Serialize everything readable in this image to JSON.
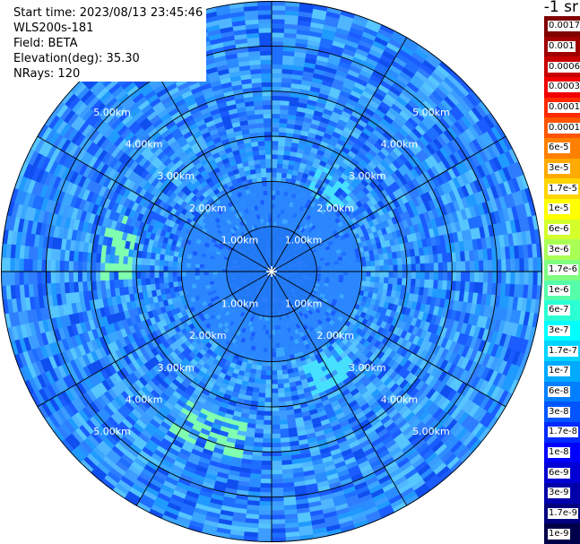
{
  "header": {
    "start_time": "Start time: 2023/08/13 23:45:46",
    "instrument": "WLS200s-181",
    "field": "Field: BETA",
    "elevation": "Elevation(deg): 35.30",
    "nrays": "NRays: 120",
    "units": "-1 sr"
  },
  "colorbar": {
    "labels": [
      "0.0017",
      "0.001",
      "0.0006",
      "0.0003",
      "0.00017",
      "0.0001",
      "6e-5",
      "3e-5",
      "1.7e-5",
      "1e-5",
      "6e-6",
      "3e-6",
      "1.7e-6",
      "1e-6",
      "6e-7",
      "3e-7",
      "1.7e-7",
      "1e-7",
      "6e-8",
      "3e-8",
      "1.7e-8",
      "1e-8",
      "6e-9",
      "3e-9",
      "1.7e-9",
      "1e-9"
    ],
    "colors": [
      "#800000",
      "#a00000",
      "#c80000",
      "#f00000",
      "#ff2a00",
      "#ff5500",
      "#ff8000",
      "#ffaa00",
      "#ffd400",
      "#ffff00",
      "#d4ff2b",
      "#aaff55",
      "#80ff80",
      "#55ffaa",
      "#2bffd4",
      "#00ffff",
      "#00d4ff",
      "#00aaff",
      "#0080ff",
      "#0055ff",
      "#002aff",
      "#0000ff",
      "#0000d4",
      "#0000aa",
      "#000080",
      "#00004a"
    ]
  },
  "chart_data": {
    "type": "heatmap",
    "projection": "polar PPI",
    "nrays": 120,
    "max_range_km": 6.0,
    "range_ring_labels": [
      "1.00km",
      "2.00km",
      "3.00km",
      "4.00km",
      "5.00km"
    ],
    "range_rings_km": [
      1,
      2,
      3,
      4,
      5,
      6
    ],
    "radial_lines_deg": [
      0,
      30,
      60,
      90,
      120,
      150,
      180,
      210,
      240,
      270,
      300,
      330
    ],
    "colormap": "jet",
    "color_scale": "log",
    "vmin": 1e-09,
    "vmax": 0.0017,
    "dominant_level": "1e-8 to 6e-8",
    "enhanced_regions": [
      {
        "azimuth_deg": 35,
        "range_km": 2.2,
        "level": "1e-7"
      },
      {
        "azimuth_deg": 150,
        "range_km": 2.5,
        "level": "1e-7"
      },
      {
        "azimuth_deg": 280,
        "range_km": 3.5,
        "level": "1e-6"
      },
      {
        "azimuth_deg": 200,
        "range_km": 3.8,
        "level": "1e-6"
      }
    ]
  }
}
